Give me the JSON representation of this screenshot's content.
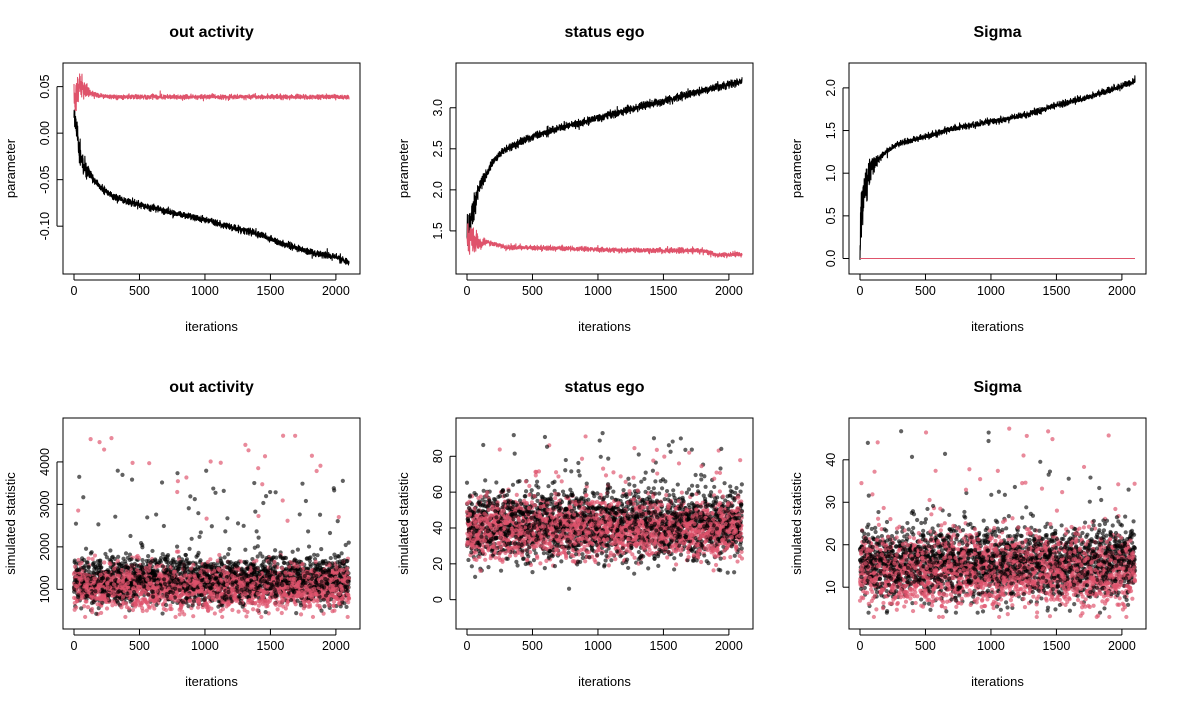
{
  "colors": {
    "black": "#000000",
    "red": "#DF536B"
  },
  "chart_data": [
    {
      "type": "line",
      "title": "out activity",
      "xlabel": "iterations",
      "ylabel": "parameter",
      "xlim": [
        0,
        2100
      ],
      "ylim": [
        -0.143,
        0.067
      ],
      "xticks": [
        0,
        500,
        1000,
        1500,
        2000
      ],
      "xtick_labels": [
        "0",
        "500",
        "1000",
        "1500",
        "2000"
      ],
      "yticks": [
        -0.1,
        -0.05,
        0.0,
        0.05
      ],
      "ytick_labels": [
        "-0.10",
        "-0.05",
        "0.00",
        "0.05"
      ],
      "series": [
        {
          "name": "black",
          "color": "#000000",
          "n": 2100,
          "anchors": [
            [
              0,
              0.035
            ],
            [
              5,
              0.02
            ],
            [
              20,
              0.005
            ],
            [
              40,
              -0.02
            ],
            [
              70,
              -0.035
            ],
            [
              120,
              -0.045
            ],
            [
              200,
              -0.058
            ],
            [
              300,
              -0.068
            ],
            [
              400,
              -0.074
            ],
            [
              600,
              -0.08
            ],
            [
              800,
              -0.087
            ],
            [
              1000,
              -0.093
            ],
            [
              1200,
              -0.101
            ],
            [
              1400,
              -0.108
            ],
            [
              1600,
              -0.119
            ],
            [
              1800,
              -0.128
            ],
            [
              2000,
              -0.133
            ],
            [
              2100,
              -0.139
            ]
          ],
          "noise": 0.0018,
          "early_noise": 0.006
        },
        {
          "name": "red",
          "color": "#DF536B",
          "n": 2100,
          "anchors": [
            [
              0,
              0.036
            ],
            [
              20,
              0.042
            ],
            [
              40,
              0.055
            ],
            [
              80,
              0.046
            ],
            [
              150,
              0.041
            ],
            [
              300,
              0.039
            ],
            [
              1000,
              0.039
            ],
            [
              2100,
              0.039
            ]
          ],
          "noise": 0.0012,
          "early_noise": 0.008
        }
      ]
    },
    {
      "type": "line",
      "title": "status ego",
      "xlabel": "iterations",
      "ylabel": "parameter",
      "xlim": [
        0,
        2100
      ],
      "ylim": [
        1.07,
        3.45
      ],
      "xticks": [
        0,
        500,
        1000,
        1500,
        2000
      ],
      "xtick_labels": [
        "0",
        "500",
        "1000",
        "1500",
        "2000"
      ],
      "yticks": [
        1.5,
        2.0,
        2.5,
        3.0
      ],
      "ytick_labels": [
        "1.5",
        "2.0",
        "2.5",
        "3.0"
      ],
      "series": [
        {
          "name": "black",
          "color": "#000000",
          "n": 2100,
          "anchors": [
            [
              0,
              1.45
            ],
            [
              20,
              1.55
            ],
            [
              60,
              1.85
            ],
            [
              100,
              2.05
            ],
            [
              200,
              2.35
            ],
            [
              300,
              2.5
            ],
            [
              500,
              2.65
            ],
            [
              700,
              2.75
            ],
            [
              900,
              2.83
            ],
            [
              1100,
              2.92
            ],
            [
              1300,
              3.0
            ],
            [
              1500,
              3.08
            ],
            [
              1700,
              3.17
            ],
            [
              1900,
              3.25
            ],
            [
              2100,
              3.32
            ]
          ],
          "noise": 0.022,
          "early_noise": 0.09
        },
        {
          "name": "red",
          "color": "#DF536B",
          "n": 2100,
          "anchors": [
            [
              0,
              1.38
            ],
            [
              30,
              1.42
            ],
            [
              60,
              1.33
            ],
            [
              150,
              1.37
            ],
            [
              300,
              1.3
            ],
            [
              700,
              1.29
            ],
            [
              1100,
              1.27
            ],
            [
              1500,
              1.26
            ],
            [
              1800,
              1.26
            ],
            [
              1900,
              1.21
            ],
            [
              2100,
              1.21
            ]
          ],
          "noise": 0.014,
          "early_noise": 0.09
        }
      ]
    },
    {
      "type": "line",
      "title": "Sigma",
      "xlabel": "iterations",
      "ylabel": "parameter",
      "xlim": [
        0,
        2100
      ],
      "ylim": [
        -0.09,
        2.2
      ],
      "xticks": [
        0,
        500,
        1000,
        1500,
        2000
      ],
      "xtick_labels": [
        "0",
        "500",
        "1000",
        "1500",
        "2000"
      ],
      "yticks": [
        0.0,
        0.5,
        1.0,
        1.5,
        2.0
      ],
      "ytick_labels": [
        "0.0",
        "0.5",
        "1.0",
        "1.5",
        "2.0"
      ],
      "series": [
        {
          "name": "black",
          "color": "#000000",
          "n": 2100,
          "anchors": [
            [
              0,
              0.0
            ],
            [
              10,
              0.55
            ],
            [
              30,
              0.75
            ],
            [
              60,
              0.95
            ],
            [
              100,
              1.1
            ],
            [
              200,
              1.25
            ],
            [
              300,
              1.35
            ],
            [
              500,
              1.43
            ],
            [
              700,
              1.52
            ],
            [
              900,
              1.58
            ],
            [
              1100,
              1.63
            ],
            [
              1300,
              1.7
            ],
            [
              1500,
              1.8
            ],
            [
              1700,
              1.87
            ],
            [
              1900,
              1.97
            ],
            [
              2100,
              2.08
            ]
          ],
          "noise": 0.018,
          "early_noise": 0.14
        },
        {
          "name": "red",
          "color": "#DF536B",
          "n": 2100,
          "anchors": [
            [
              0,
              0.0
            ],
            [
              2100,
              0.0
            ]
          ],
          "noise": 0,
          "early_noise": 0
        }
      ]
    },
    {
      "type": "scatter",
      "title": "out activity",
      "xlabel": "iterations",
      "ylabel": "simulated statistic",
      "xlim": [
        0,
        2100
      ],
      "ylim": [
        250,
        4850
      ],
      "xticks": [
        0,
        500,
        1000,
        1500,
        2000
      ],
      "xtick_labels": [
        "0",
        "500",
        "1000",
        "1500",
        "2000"
      ],
      "yticks": [
        1000,
        2000,
        3000,
        4000
      ],
      "ytick_labels": [
        "1000",
        "2000",
        "3000",
        "4000"
      ],
      "series": [
        {
          "name": "black",
          "color": "#000000",
          "opacity": 0.62,
          "n": 2100,
          "mean": 1150,
          "sd": 370,
          "min": 380,
          "max": 3800
        },
        {
          "name": "red",
          "color": "#DF536B",
          "opacity": 0.68,
          "n": 2100,
          "mean": 1000,
          "sd": 330,
          "min": 350,
          "max": 4700
        }
      ]
    },
    {
      "type": "scatter",
      "title": "status ego",
      "xlabel": "iterations",
      "ylabel": "simulated statistic",
      "xlim": [
        0,
        2100
      ],
      "ylim": [
        -12,
        97
      ],
      "xticks": [
        0,
        500,
        1000,
        1500,
        2000
      ],
      "xtick_labels": [
        "0",
        "500",
        "1000",
        "1500",
        "2000"
      ],
      "yticks": [
        0,
        20,
        40,
        60,
        80
      ],
      "ytick_labels": [
        "0",
        "20",
        "40",
        "60",
        "80"
      ],
      "series": [
        {
          "name": "black",
          "color": "#000000",
          "opacity": 0.62,
          "n": 2100,
          "mean": 40,
          "sd": 13,
          "min": -8,
          "max": 93
        },
        {
          "name": "red",
          "color": "#DF536B",
          "opacity": 0.68,
          "n": 2100,
          "mean": 38,
          "sd": 11,
          "min": 1,
          "max": 93
        }
      ]
    },
    {
      "type": "scatter",
      "title": "Sigma",
      "xlabel": "iterations",
      "ylabel": "simulated statistic",
      "xlim": [
        0,
        2100
      ],
      "ylim": [
        2,
        48
      ],
      "xticks": [
        0,
        500,
        1000,
        1500,
        2000
      ],
      "xtick_labels": [
        "0",
        "500",
        "1000",
        "1500",
        "2000"
      ],
      "yticks": [
        10,
        20,
        30,
        40
      ],
      "ytick_labels": [
        "10",
        "20",
        "30",
        "40"
      ],
      "series": [
        {
          "name": "black",
          "color": "#000000",
          "opacity": 0.62,
          "n": 2100,
          "mean": 15,
          "sd": 5.5,
          "min": 4,
          "max": 47
        },
        {
          "name": "red",
          "color": "#DF536B",
          "opacity": 0.68,
          "n": 2100,
          "mean": 13,
          "sd": 5.5,
          "min": 3,
          "max": 48
        }
      ]
    }
  ]
}
